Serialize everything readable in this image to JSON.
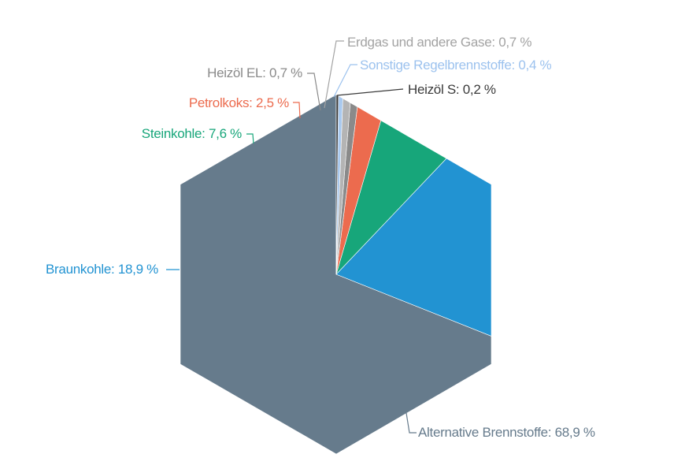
{
  "chart_data": {
    "type": "pie",
    "shape": "hexagon",
    "slices": [
      {
        "key": "alternative",
        "label": "Alternative Brennstoffe: 68,9 %",
        "value": 68.9,
        "color": "#667b8c",
        "label_color": "#667b8c"
      },
      {
        "key": "braunkohle",
        "label": "Braunkohle: 18,9 %",
        "value": 18.9,
        "color": "#2293d2",
        "label_color": "#2293d2"
      },
      {
        "key": "steinkohle",
        "label": "Steinkohle: 7,6 %",
        "value": 7.6,
        "color": "#17a67a",
        "label_color": "#17a67a"
      },
      {
        "key": "petrolkoks",
        "label": "Petrolkoks: 2,5 %",
        "value": 2.5,
        "color": "#ec6b4e",
        "label_color": "#ec6b4e"
      },
      {
        "key": "heizoel-el",
        "label": "Heizöl EL: 0,7 %",
        "value": 0.7,
        "color": "#8a8a8a",
        "label_color": "#8a8a8a"
      },
      {
        "key": "erdgas",
        "label": "Erdgas und andere Gase: 0,7 %",
        "value": 0.7,
        "color": "#b4b4b4",
        "label_color": "#a3a3a3"
      },
      {
        "key": "sonstige",
        "label": "Sonstige Regelbrennstoffe: 0,4 %",
        "value": 0.4,
        "color": "#a9c9ee",
        "label_color": "#9cc2ee"
      },
      {
        "key": "heizoel-s",
        "label": "Heizöl S: 0,2 %",
        "value": 0.2,
        "color": "#3a3a3a",
        "label_color": "#3a3a3a"
      }
    ]
  }
}
